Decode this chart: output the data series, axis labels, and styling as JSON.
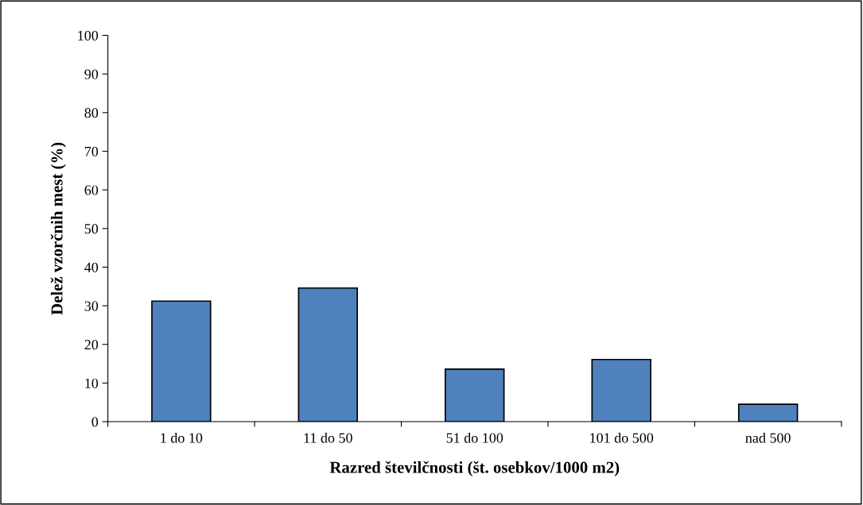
{
  "chart_data": {
    "type": "bar",
    "xlabel": "Razred številčnosti (št. osebkov/1000 m2)",
    "ylabel": "Delež vzorčnih mest (%)",
    "categories": [
      "1 do 10",
      "11 do 50",
      "51 do 100",
      "101 do 500",
      "nad 500"
    ],
    "values": [
      31.2,
      34.6,
      13.6,
      16.1,
      4.5
    ],
    "color": "#4f81bd",
    "ylim": [
      0,
      100
    ],
    "yticks": [
      0,
      10,
      20,
      30,
      40,
      50,
      60,
      70,
      80,
      90,
      100
    ],
    "grid": false,
    "legend": false
  }
}
